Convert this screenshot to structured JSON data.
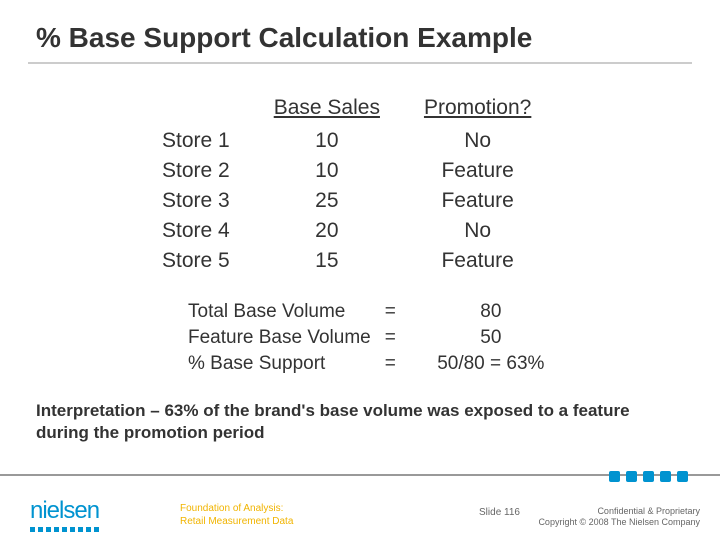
{
  "title": "% Base Support Calculation Example",
  "table": {
    "headers": {
      "col2": "Base Sales",
      "col3": "Promotion?"
    },
    "rows": [
      {
        "store": "Store 1",
        "base": "10",
        "promo": "No"
      },
      {
        "store": "Store 2",
        "base": "10",
        "promo": "Feature"
      },
      {
        "store": "Store 3",
        "base": "25",
        "promo": "Feature"
      },
      {
        "store": "Store 4",
        "base": "20",
        "promo": "No"
      },
      {
        "store": "Store 5",
        "base": "15",
        "promo": "Feature"
      }
    ]
  },
  "summary": {
    "lines": [
      {
        "label": "Total Base Volume",
        "eq": "=",
        "value": "80"
      },
      {
        "label": "Feature Base Volume",
        "eq": "=",
        "value": "50"
      },
      {
        "label": "% Base Support",
        "eq": "=",
        "value": "50/80 = 63%"
      }
    ]
  },
  "interpretation": {
    "lead": "Interpretation – ",
    "body": "63% of the brand's base volume was exposed to a feature during the promotion period"
  },
  "footer": {
    "logo_text": "nielsen",
    "center_line1": "Foundation of Analysis:",
    "center_line2": "Retail Measurement Data",
    "slide_label": "Slide",
    "slide_number": "116",
    "right_line1": "Confidential & Proprietary",
    "right_line2": "Copyright © 2008 The Nielsen Company"
  },
  "colors": {
    "brand_blue": "#0093d0",
    "accent_gold": "#f1b400",
    "text": "#333333",
    "rule": "#cccccc",
    "footer_rule": "#999999"
  }
}
